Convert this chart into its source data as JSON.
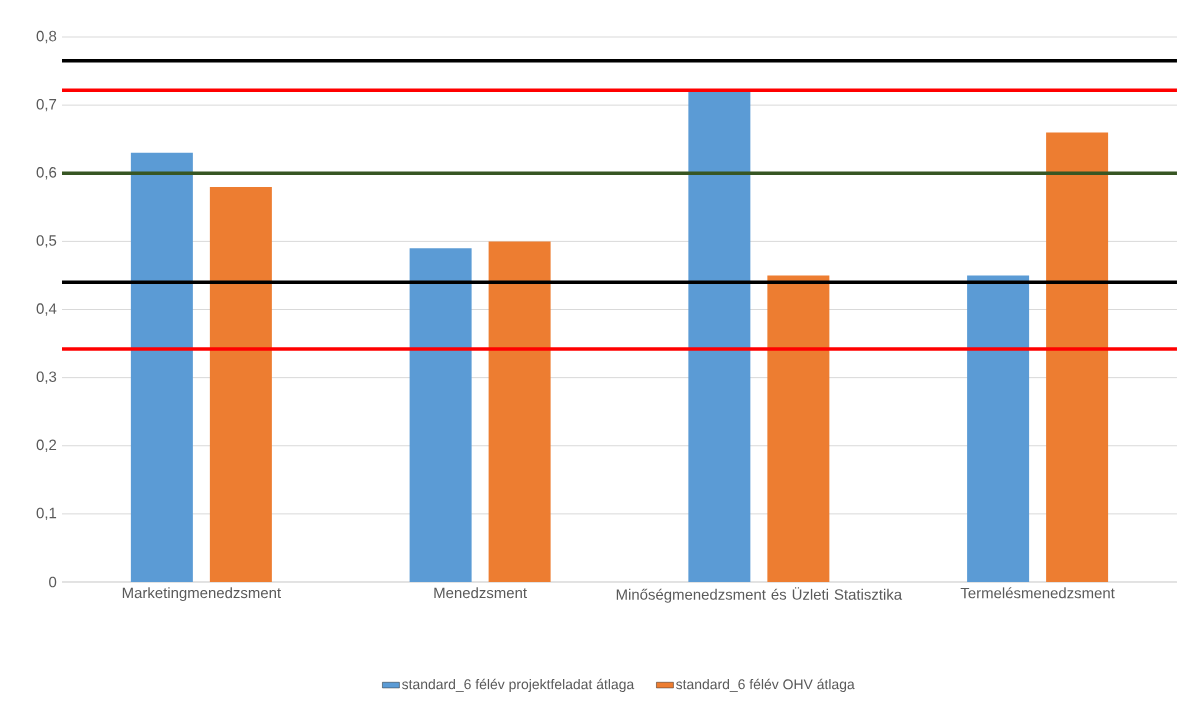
{
  "chart_data": {
    "type": "bar",
    "categories": [
      "Marketingmenedzsment",
      "Menedzsment",
      "Minőségmenedzsment és Üzleti Statisztika",
      "Termelésmenedzsment"
    ],
    "series": [
      {
        "name": "standard_6 félév projektfeladat átlaga",
        "color": "#5b9bd5",
        "values": [
          0.63,
          0.49,
          0.72,
          0.45
        ]
      },
      {
        "name": "standard_6 félév OHV átlaga",
        "color": "#ed7d31",
        "values": [
          0.58,
          0.5,
          0.45,
          0.66
        ]
      }
    ],
    "ylim": [
      0,
      0.8
    ],
    "yticks": [
      0,
      {
        "value": 0.1,
        "label": "0,1"
      },
      {
        "value": 0.2,
        "label": "0,2"
      },
      {
        "value": 0.3,
        "label": "0,3"
      },
      {
        "value": 0.4,
        "label": "0,4"
      },
      {
        "value": 0.5,
        "label": "0,5"
      },
      {
        "value": 0.6,
        "label": "0,6"
      },
      {
        "value": 0.7,
        "label": "0,7"
      },
      {
        "value": 0.8,
        "label": "0,8"
      }
    ],
    "ref_lines": [
      {
        "axis": "y",
        "value": 0.765,
        "color": "#000000"
      },
      {
        "axis": "y",
        "value": 0.722,
        "color": "#ff0000"
      },
      {
        "axis": "y",
        "value": 0.6,
        "color": "#375623"
      },
      {
        "axis": "y",
        "value": 0.44,
        "color": "#000000"
      },
      {
        "axis": "y",
        "value": 0.342,
        "color": "#ff0000"
      }
    ],
    "grid": "y",
    "legend": "bottom"
  }
}
